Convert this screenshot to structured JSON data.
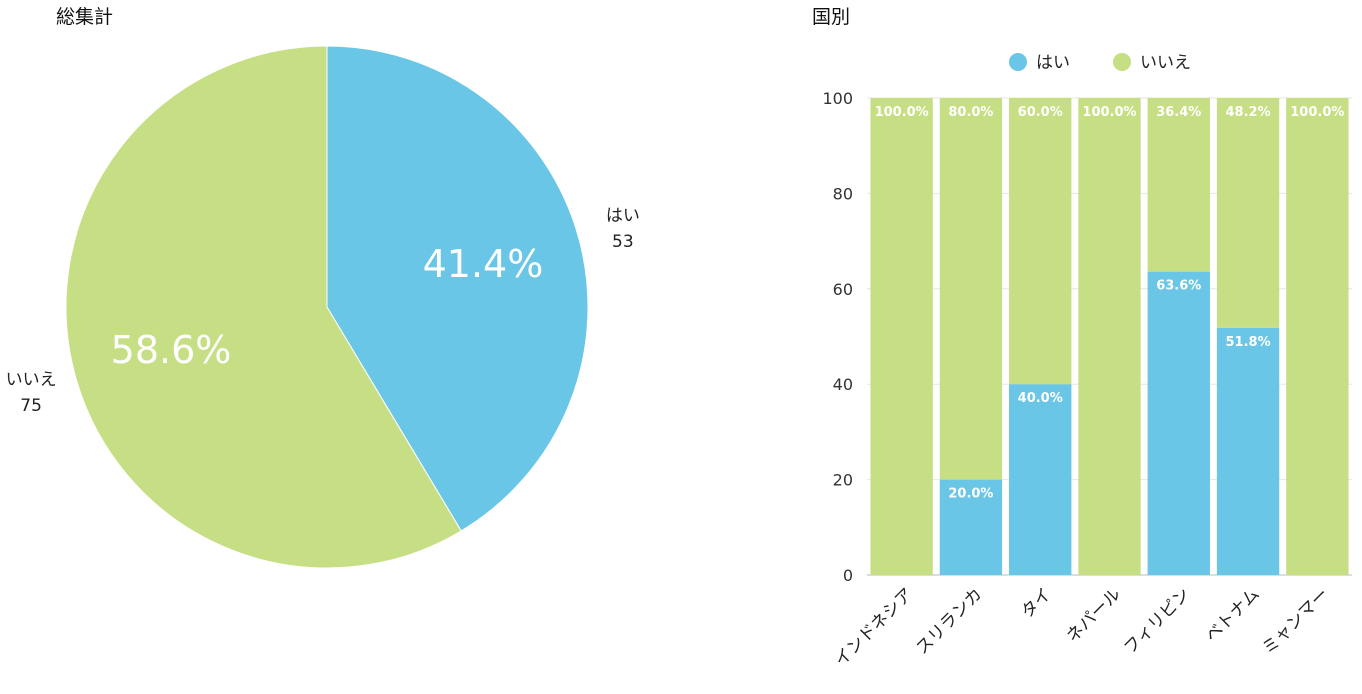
{
  "chart_data": [
    {
      "type": "pie",
      "title": "総集計",
      "slices": [
        {
          "label": "はい",
          "value": 53,
          "percent_label": "41.4%",
          "color": "#6ac6e6"
        },
        {
          "label": "いいえ",
          "value": 75,
          "percent_label": "58.6%",
          "color": "#c6df84"
        }
      ]
    },
    {
      "type": "bar",
      "stacked": true,
      "title": "国別",
      "legend_position": "top",
      "categories": [
        "インドネシア",
        "スリランカ",
        "タイ",
        "ネパール",
        "フィリピン",
        "ベトナム",
        "ミャンマー"
      ],
      "series": [
        {
          "name": "はい",
          "color": "#6ac6e6",
          "values": [
            0,
            20.0,
            40.0,
            0,
            63.6,
            51.8,
            0
          ],
          "labels": [
            "",
            "20.0%",
            "40.0%",
            "",
            "63.6%",
            "51.8%",
            ""
          ]
        },
        {
          "name": "いいえ",
          "color": "#c6df84",
          "values": [
            100.0,
            80.0,
            60.0,
            100.0,
            36.4,
            48.2,
            100.0
          ],
          "labels": [
            "100.0%",
            "80.0%",
            "60.0%",
            "100.0%",
            "36.4%",
            "48.2%",
            "100.0%"
          ]
        }
      ],
      "ylim": [
        0,
        100
      ],
      "yticks": [
        0,
        20,
        40,
        60,
        80,
        100
      ],
      "grid": true
    }
  ]
}
